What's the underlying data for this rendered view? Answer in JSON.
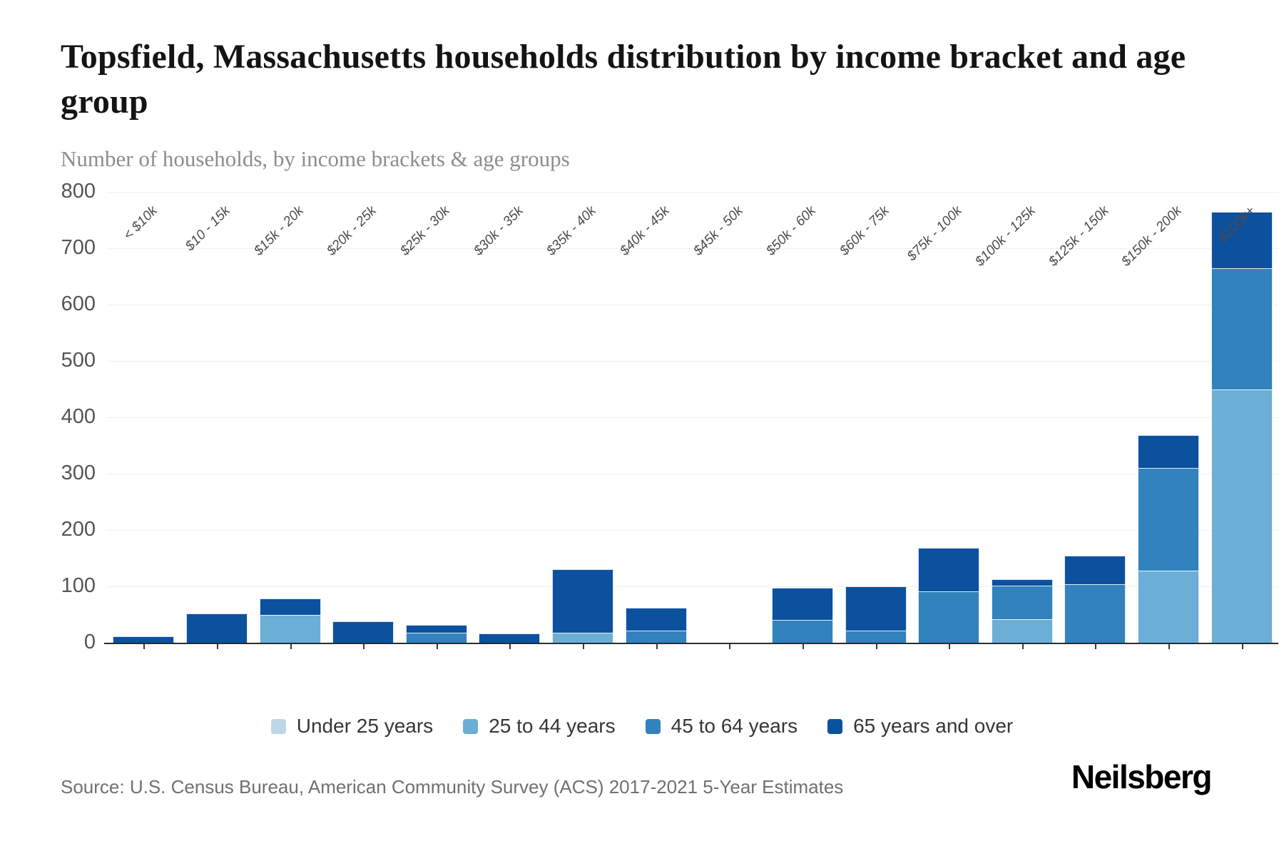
{
  "header": {
    "title": "Topsfield, Massachusetts households distribution by income bracket and age group",
    "subtitle": "Number of households, by income brackets & age groups"
  },
  "chart_data": {
    "type": "bar",
    "variant": "stacked-vertical",
    "categories": [
      "< $10k",
      "$10 - 15k",
      "$15k - 20k",
      "$20k - 25k",
      "$25k - 30k",
      "$30k - 35k",
      "$35k - 40k",
      "$40k - 45k",
      "$45k - 50k",
      "$50k - 60k",
      "$60k - 75k",
      "$75k - 100k",
      "$100k - 125k",
      "$125k - 150k",
      "$150k - 200k",
      "$200k+"
    ],
    "series": [
      {
        "name": "Under 25 years",
        "color": "#bdd7e7",
        "values": [
          0,
          0,
          0,
          0,
          0,
          0,
          0,
          0,
          0,
          0,
          0,
          0,
          0,
          0,
          0,
          0
        ]
      },
      {
        "name": "25 to 44 years",
        "color": "#6baed6",
        "values": [
          0,
          0,
          49,
          0,
          0,
          0,
          18,
          0,
          0,
          0,
          0,
          0,
          42,
          0,
          128,
          450
        ]
      },
      {
        "name": "45 to 64 years",
        "color": "#3182bd",
        "values": [
          0,
          0,
          0,
          0,
          18,
          0,
          0,
          21,
          0,
          40,
          22,
          91,
          59,
          104,
          182,
          215
        ]
      },
      {
        "name": "65 years and over",
        "color": "#0b519e",
        "values": [
          12,
          52,
          29,
          38,
          14,
          16,
          112,
          41,
          0,
          58,
          78,
          77,
          12,
          50,
          58,
          100
        ]
      }
    ],
    "title": "Topsfield, Massachusetts households distribution by income bracket and age group",
    "xlabel": "",
    "ylabel": "Number of households",
    "ylim": [
      0,
      800
    ],
    "yticks": [
      0,
      100,
      200,
      300,
      400,
      500,
      600,
      700,
      800
    ],
    "grid": "horizontal",
    "legend_position": "bottom-center"
  },
  "footer": {
    "source": "Source: U.S. Census Bureau, American Community Survey (ACS) 2017-2021 5-Year Estimates",
    "brand": "Neilsberg"
  }
}
